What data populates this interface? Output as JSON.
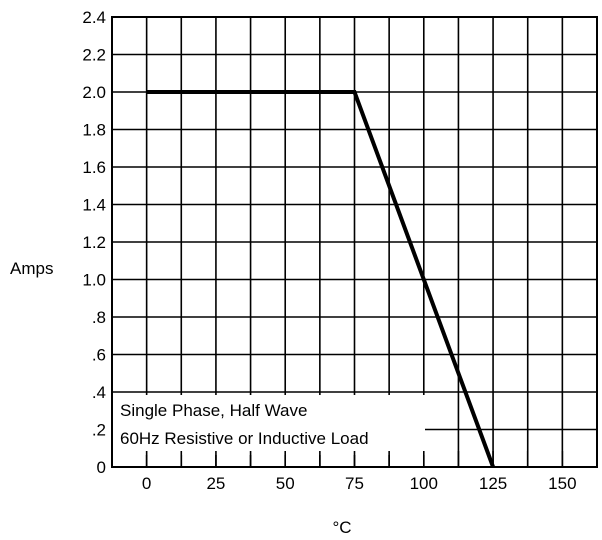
{
  "chart_data": {
    "type": "line",
    "title": "",
    "xlabel": "°C",
    "ylabel": "Amps",
    "x_ticks": [
      0,
      25,
      50,
      75,
      100,
      125,
      150
    ],
    "y_ticks": [
      0,
      0.2,
      0.4,
      0.6,
      0.8,
      1.0,
      1.2,
      1.4,
      1.6,
      1.8,
      2.0,
      2.2,
      2.4
    ],
    "y_tick_labels": [
      "0",
      ".2",
      ".4",
      ".6",
      ".8",
      "1.0",
      "1.2",
      "1.4",
      "1.6",
      "1.8",
      "2.0",
      "2.2",
      "2.4"
    ],
    "xlim": [
      -12.5,
      162.5
    ],
    "ylim": [
      0,
      2.4
    ],
    "grid": true,
    "series": [
      {
        "x": [
          0,
          75,
          125
        ],
        "y": [
          2.0,
          2.0,
          0
        ]
      }
    ],
    "annotation_lines": [
      "Single Phase, Half Wave",
      "60Hz Resistive or Inductive Load"
    ]
  }
}
